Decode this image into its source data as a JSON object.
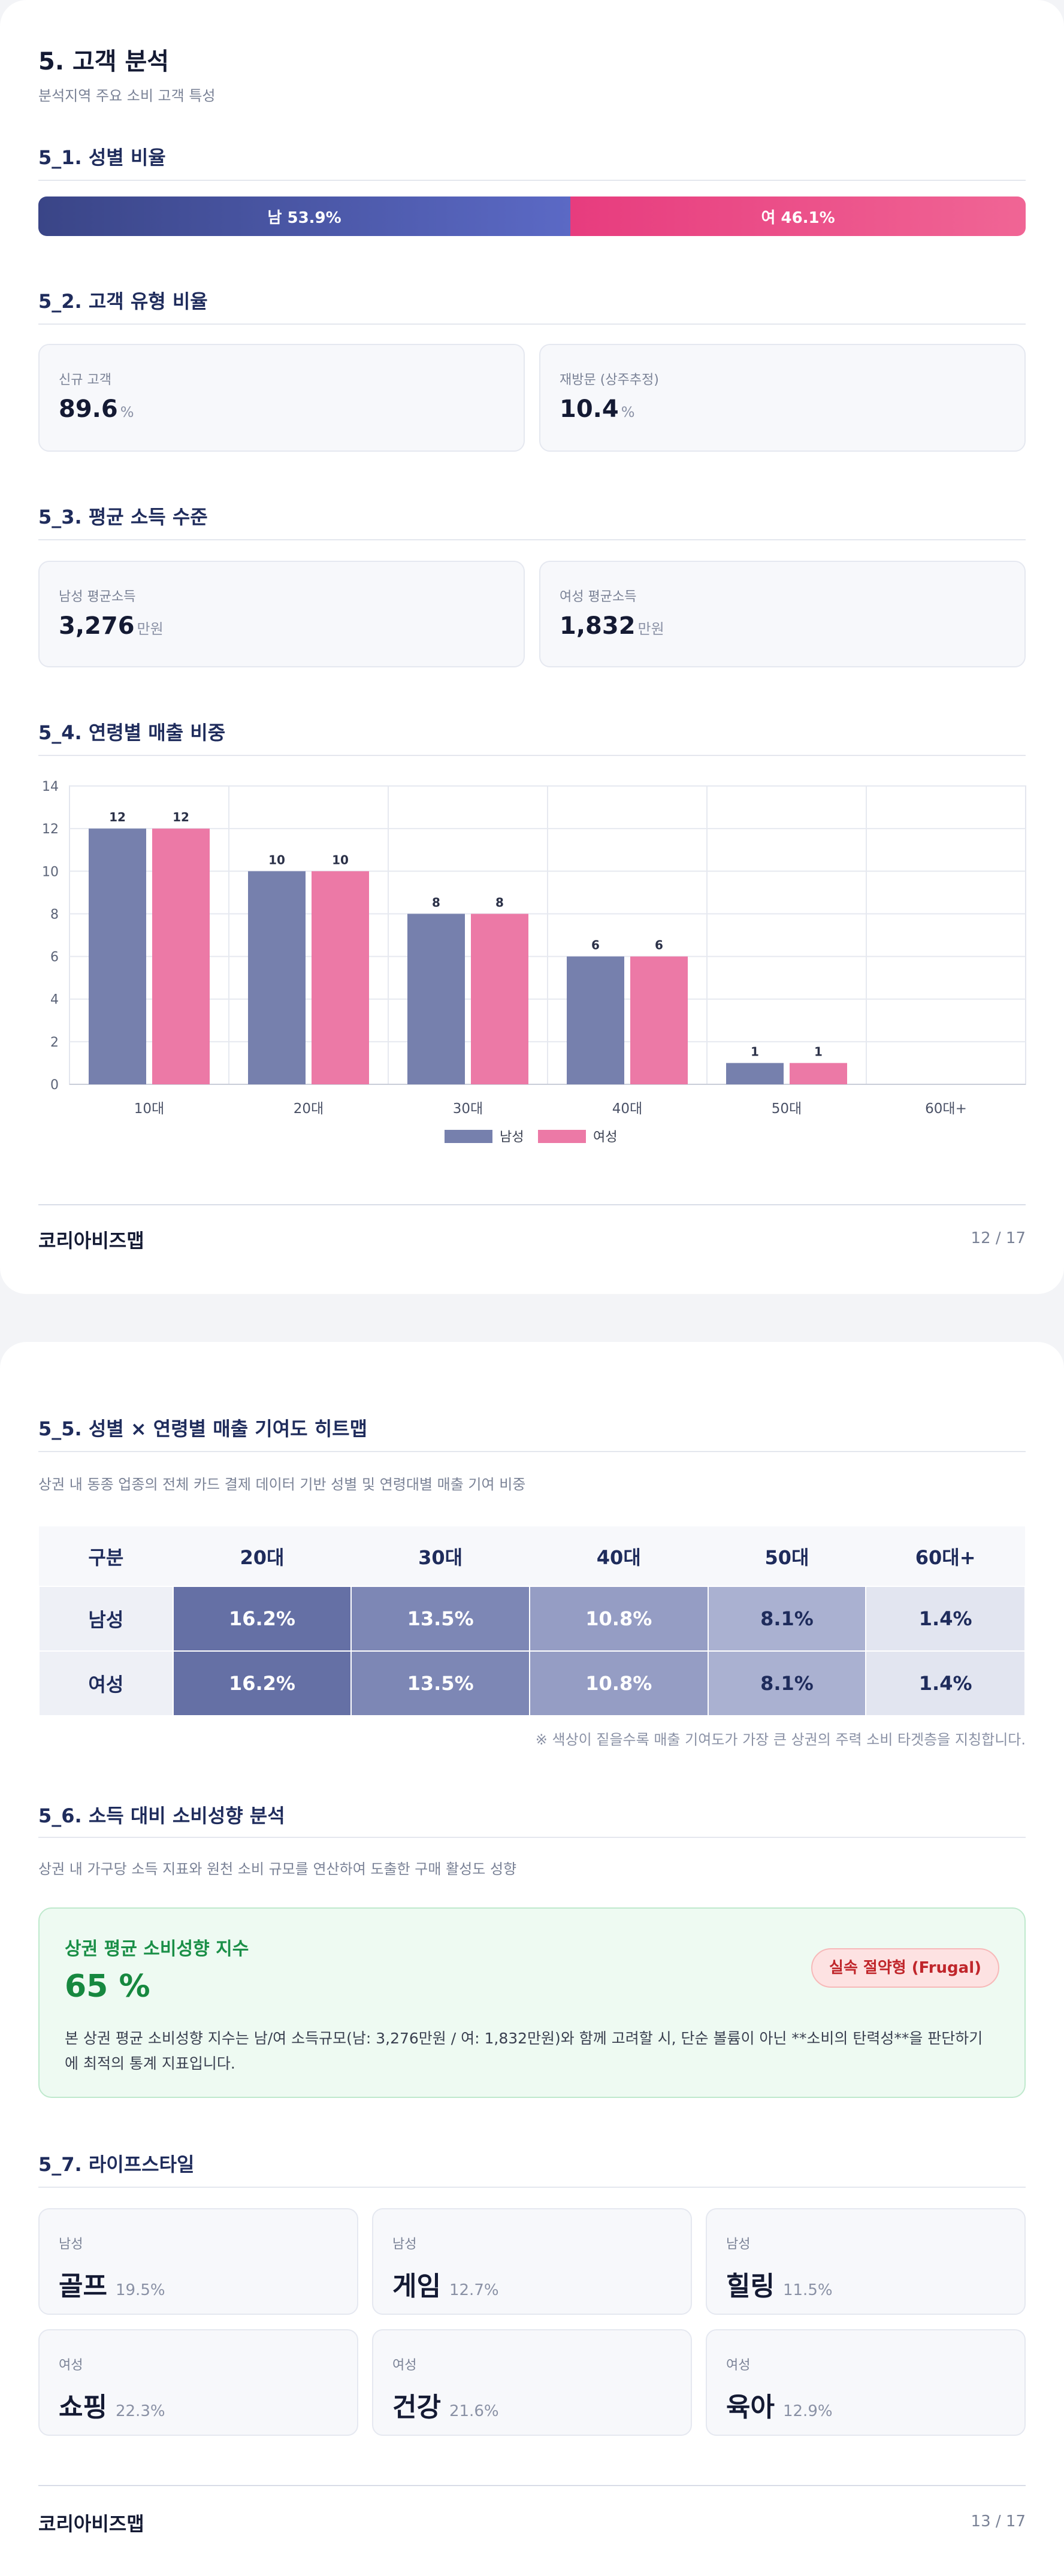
{
  "section": {
    "title": "5. 고객 분석",
    "subtitle": "분석지역 주요 소비 고객 특성"
  },
  "gender": {
    "heading": "5_1. 성별 비율",
    "male_label": "남 53.9%",
    "female_label": "여 46.1%",
    "male_share": 0.539,
    "male_color": "#3f4c8f",
    "female_color": "#e9407f"
  },
  "customer_type": {
    "heading": "5_2. 고객 유형 비율",
    "new_label": "신규 고객",
    "new_value": "89.6",
    "new_unit": "%",
    "return_label": "재방문 (상주추정)",
    "return_value": "10.4",
    "return_unit": "%"
  },
  "income": {
    "heading": "5_3. 평균 소득 수준",
    "male_label": "남성 평균소득",
    "male_value": "3,276",
    "male_unit": "만원",
    "female_label": "여성 평균소득",
    "female_value": "1,832",
    "female_unit": "만원"
  },
  "age_sales": {
    "heading": "5_4. 연령별 매출 비중"
  },
  "chart_data": {
    "type": "bar",
    "categories": [
      "10대",
      "20대",
      "30대",
      "40대",
      "50대",
      "60대+"
    ],
    "series": [
      {
        "name": "남성",
        "values": [
          12,
          10,
          8,
          6,
          1,
          0
        ],
        "color": "#7680ad"
      },
      {
        "name": "여성",
        "values": [
          12,
          10,
          8,
          6,
          1,
          0
        ],
        "color": "#ec79a6"
      }
    ],
    "ylim": [
      0,
      14
    ],
    "yticks": [
      0,
      2,
      4,
      6,
      8,
      10,
      12,
      14
    ],
    "grid": true,
    "legend": "bottom"
  },
  "footer1": {
    "brand": "코리아비즈맵",
    "page": "12 / 17"
  },
  "heatmap": {
    "heading": "5_5. 성별 × 연령별 매출 기여도 히트맵",
    "subtitle": "상권 내 동종 업종의 전체 카드 결제 데이터 기반 성별 및 연령대별 매출 기여 비중",
    "corner": "구분",
    "columns": [
      "20대",
      "30대",
      "40대",
      "50대",
      "60대+"
    ],
    "rows": [
      {
        "label": "남성",
        "cells": [
          "16.2%",
          "13.5%",
          "10.8%",
          "8.1%",
          "1.4%"
        ]
      },
      {
        "label": "여성",
        "cells": [
          "16.2%",
          "13.5%",
          "10.8%",
          "8.1%",
          "1.4%"
        ]
      }
    ],
    "note": "※ 색상이 짙을수록 매출 기여도가 가장 큰 상권의 주력 소비 타겟층을 지칭합니다."
  },
  "spending": {
    "heading": "5_6. 소득 대비 소비성향 분석",
    "subtitle": "상권 내 가구당 소득 지표와 원천 소비 규모를 연산하여 도출한 구매 활성도 성향",
    "card_title": "상권 평균 소비성향 지수",
    "value": "65 %",
    "badge": "실속 절약형 (Frugal)",
    "description": "본 상권 평균 소비성향 지수는 남/여 소득규모(남: 3,276만원 / 여: 1,832만원)와 함께 고려할 시, 단순 볼륨이 아닌 **소비의 탄력성**을 판단하기 에 최적의 통계 지표입니다."
  },
  "lifestyle": {
    "heading": "5_7. 라이프스타일",
    "items": [
      {
        "gender": "남성",
        "name": "골프",
        "pct": "19.5%"
      },
      {
        "gender": "남성",
        "name": "게임",
        "pct": "12.7%"
      },
      {
        "gender": "남성",
        "name": "힐링",
        "pct": "11.5%"
      },
      {
        "gender": "여성",
        "name": "쇼핑",
        "pct": "22.3%"
      },
      {
        "gender": "여성",
        "name": "건강",
        "pct": "21.6%"
      },
      {
        "gender": "여성",
        "name": "육아",
        "pct": "12.9%"
      }
    ]
  },
  "footer2": {
    "brand": "코리아비즈맵",
    "page": "13 / 17"
  }
}
